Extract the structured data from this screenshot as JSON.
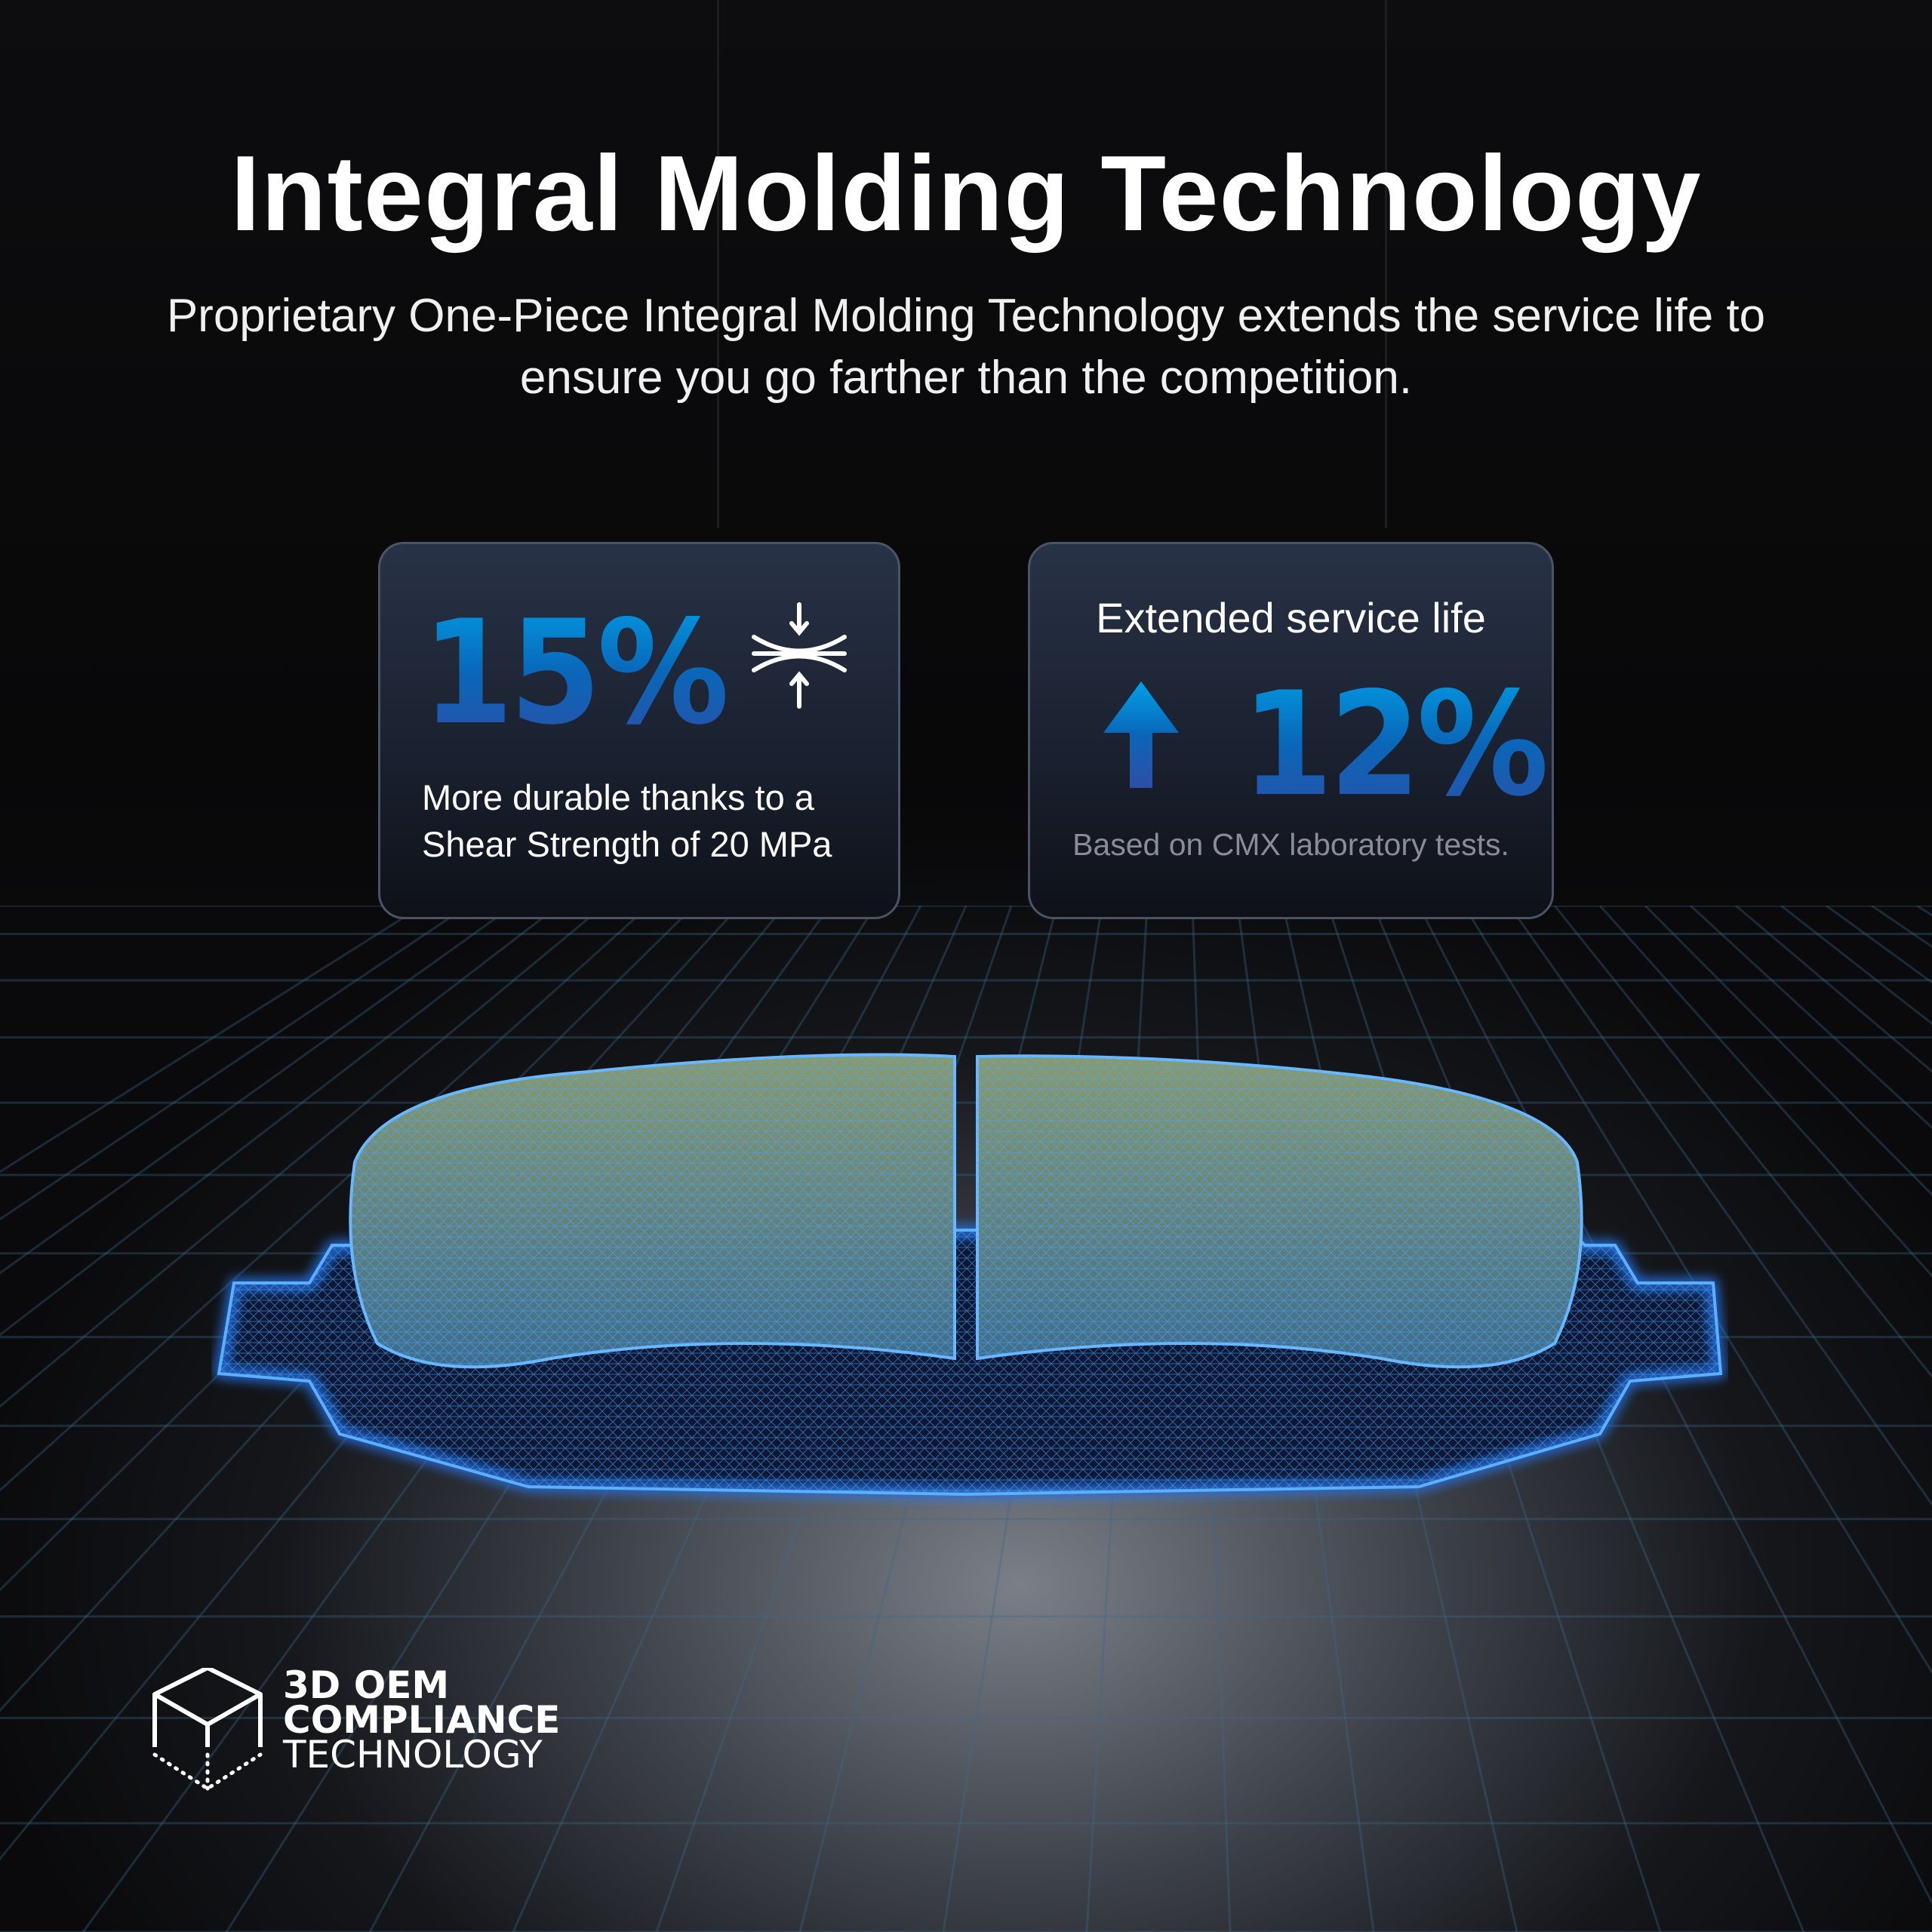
{
  "title": "Integral Molding Technology",
  "subtitle": "Proprietary One-Piece Integral Molding Technology extends the service life to ensure you go farther than the competition.",
  "card1": {
    "value": "15%",
    "icon": "compression-arrows-icon",
    "description_line1": "More durable thanks to a",
    "description_line2": "Shear Strength of 20 MPa"
  },
  "card2": {
    "heading": "Extended service life",
    "icon": "arrow-up-icon",
    "value": "12%",
    "note": "Based on CMX laboratory tests."
  },
  "logo": {
    "line1": "3D OEM",
    "line2": "COMPLIANCE",
    "line3": "TECHNOLOGY",
    "icon": "cube-icon"
  },
  "colors": {
    "accent_blue": "#0a8ad8",
    "accent_dark_blue": "#2e4ea6",
    "wireframe_glow": "#1f7fff"
  }
}
